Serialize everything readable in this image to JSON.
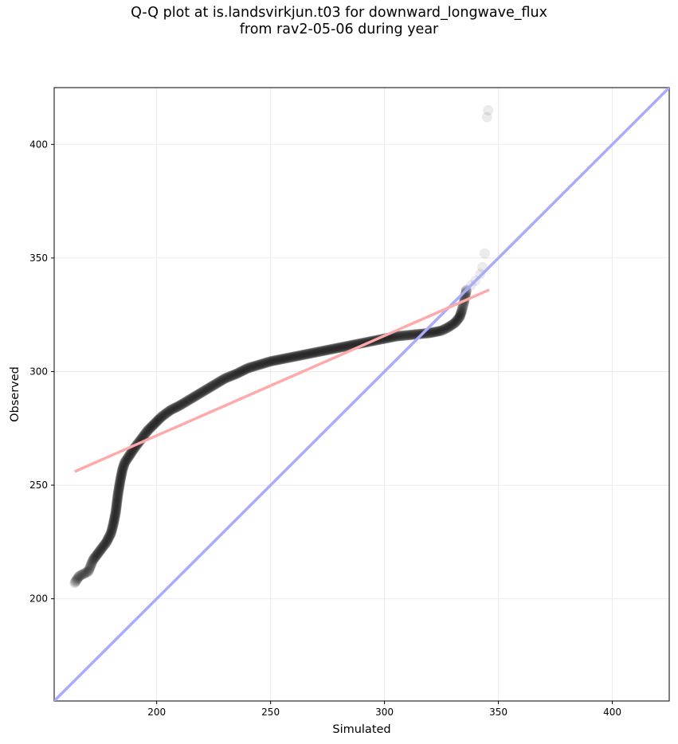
{
  "chart_data": {
    "type": "scatter",
    "title_line1": "Q-Q plot at is.landsvirkjun.t03 for downward_longwave_flux",
    "title_line2": "from rav2-05-06 during year",
    "xlabel": "Simulated",
    "ylabel": "Observed",
    "xlim": [
      155,
      425
    ],
    "ylim": [
      155,
      425
    ],
    "xticks": [
      200,
      250,
      300,
      350,
      400
    ],
    "yticks": [
      200,
      250,
      300,
      350,
      400
    ],
    "grid": true,
    "identity_line": {
      "color": "#aaaaff",
      "x": [
        155,
        425
      ],
      "y": [
        155,
        425
      ]
    },
    "fit_line": {
      "color": "#ffaaaa",
      "x": [
        164,
        346
      ],
      "y": [
        256,
        336
      ]
    },
    "point_color": "#000000",
    "quantile_curve": {
      "x": [
        164,
        166,
        170,
        172,
        175,
        178,
        180,
        181,
        182,
        183,
        184,
        185,
        186,
        188,
        190,
        193,
        196,
        199,
        202,
        206,
        210,
        215,
        220,
        225,
        230,
        235,
        240,
        245,
        250,
        255,
        260,
        265,
        270,
        275,
        280,
        285,
        290,
        295,
        300,
        305,
        310,
        315,
        320,
        325,
        328,
        331,
        333,
        334,
        335,
        336
      ],
      "y": [
        207,
        210,
        212,
        217,
        221,
        225,
        229,
        233,
        238,
        246,
        252,
        257,
        260,
        263,
        266,
        270,
        274,
        277,
        280,
        283,
        285,
        288,
        291,
        294,
        297,
        299,
        301.5,
        303,
        304.5,
        305.5,
        306.5,
        307.5,
        308.5,
        309.5,
        310.5,
        311.5,
        312.5,
        313.5,
        314.5,
        315.5,
        316,
        316.5,
        317,
        318,
        319.5,
        321.5,
        324,
        327,
        331,
        336
      ]
    },
    "outliers": {
      "x": [
        338,
        340,
        342,
        343,
        344,
        345,
        345.5
      ],
      "y": [
        338,
        340,
        343,
        346,
        352,
        412,
        415
      ]
    }
  }
}
